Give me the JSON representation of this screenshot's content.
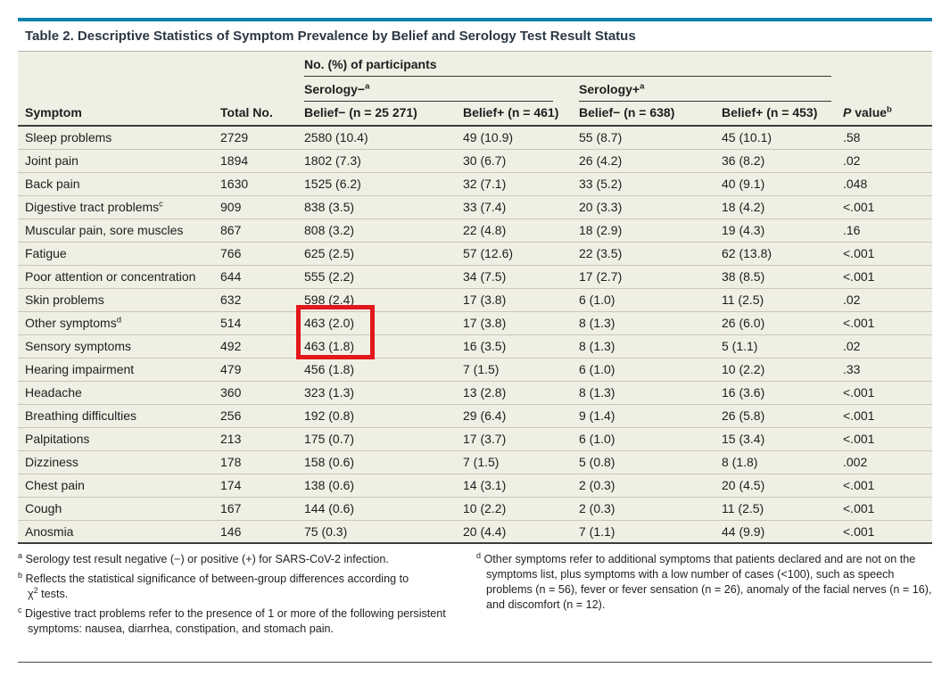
{
  "colors": {
    "accent_teal": "#0e81ad",
    "table_bg": "#f0efe4",
    "row_line": "#c8c6bb",
    "highlight_red": "#e3161c"
  },
  "table": {
    "title": "Table 2. Descriptive Statistics of Symptom Prevalence by Belief and Serology Test Result Status",
    "spanner": "No. (%) of participants",
    "groups": [
      {
        "label": "Serology−",
        "sup": "a"
      },
      {
        "label": "Serology+",
        "sup": "a"
      }
    ],
    "columns": {
      "symptom": "Symptom",
      "total": "Total No.",
      "sn_bn": "Belief− (n = 25 271)",
      "sn_bp": "Belief+ (n = 461)",
      "sp_bn": "Belief− (n = 638)",
      "sp_bp": "Belief+ (n = 453)",
      "p_italic": "P",
      "p_rest": " value",
      "p_sup": "b"
    },
    "rows": [
      {
        "symptom": "Sleep problems",
        "values": [
          "2729",
          "2580 (10.4)",
          "49 (10.9)",
          "55 (8.7)",
          "45 (10.1)",
          ".58"
        ]
      },
      {
        "symptom": "Joint pain",
        "values": [
          "1894",
          "1802 (7.3)",
          "30 (6.7)",
          "26 (4.2)",
          "36 (8.2)",
          ".02"
        ]
      },
      {
        "symptom": "Back pain",
        "values": [
          "1630",
          "1525 (6.2)",
          "32 (7.1)",
          "33 (5.2)",
          "40 (9.1)",
          ".048"
        ]
      },
      {
        "symptom": "Digestive tract problems",
        "symptom_sup": "c",
        "values": [
          "909",
          "838 (3.5)",
          "33 (7.4)",
          "20 (3.3)",
          "18 (4.2)",
          "<.001"
        ]
      },
      {
        "symptom": "Muscular pain, sore muscles",
        "values": [
          "867",
          "808 (3.2)",
          "22 (4.8)",
          "18 (2.9)",
          "19 (4.3)",
          ".16"
        ]
      },
      {
        "symptom": "Fatigue",
        "values": [
          "766",
          "625 (2.5)",
          "57 (12.6)",
          "22 (3.5)",
          "62 (13.8)",
          "<.001"
        ]
      },
      {
        "symptom": "Poor attention or concentration",
        "values": [
          "644",
          "555 (2.2)",
          "34 (7.5)",
          "17 (2.7)",
          "38 (8.5)",
          "<.001"
        ]
      },
      {
        "symptom": "Skin problems",
        "values": [
          "632",
          "598 (2.4)",
          "17 (3.8)",
          "6 (1.0)",
          "11 (2.5)",
          ".02"
        ]
      },
      {
        "symptom": "Other symptoms",
        "symptom_sup": "d",
        "values": [
          "514",
          "463 (2.0)",
          "17 (3.8)",
          "8 (1.3)",
          "26 (6.0)",
          "<.001"
        ]
      },
      {
        "symptom": "Sensory symptoms",
        "values": [
          "492",
          "463 (1.8)",
          "16 (3.5)",
          "8 (1.3)",
          "5 (1.1)",
          ".02"
        ]
      },
      {
        "symptom": "Hearing impairment",
        "values": [
          "479",
          "456 (1.8)",
          "7 (1.5)",
          "6 (1.0)",
          "10 (2.2)",
          ".33"
        ]
      },
      {
        "symptom": "Headache",
        "values": [
          "360",
          "323 (1.3)",
          "13 (2.8)",
          "8 (1.3)",
          "16 (3.6)",
          "<.001"
        ]
      },
      {
        "symptom": "Breathing difficulties",
        "values": [
          "256",
          "192 (0.8)",
          "29 (6.4)",
          "9 (1.4)",
          "26 (5.8)",
          "<.001"
        ]
      },
      {
        "symptom": "Palpitations",
        "values": [
          "213",
          "175 (0.7)",
          "17 (3.7)",
          "6 (1.0)",
          "15 (3.4)",
          "<.001"
        ]
      },
      {
        "symptom": "Dizziness",
        "values": [
          "178",
          "158 (0.6)",
          "7 (1.5)",
          "5 (0.8)",
          "8 (1.8)",
          ".002"
        ]
      },
      {
        "symptom": "Chest pain",
        "values": [
          "174",
          "138 (0.6)",
          "14 (3.1)",
          "2 (0.3)",
          "20 (4.5)",
          "<.001"
        ]
      },
      {
        "symptom": "Cough",
        "values": [
          "167",
          "144 (0.6)",
          "10 (2.2)",
          "2 (0.3)",
          "11 (2.5)",
          "<.001"
        ]
      },
      {
        "symptom": "Anosmia",
        "values": [
          "146",
          "75 (0.3)",
          "20 (4.4)",
          "7 (1.1)",
          "44 (9.9)",
          "<.001"
        ]
      }
    ]
  },
  "footnotes": {
    "a": {
      "marker": "a",
      "text": "Serology test result negative (−) or positive (+) for SARS-CoV-2 infection."
    },
    "b": {
      "marker": "b",
      "text": "Reflects the statistical significance of between-group differences according to",
      "chi": "χ",
      "sup": "2",
      "after": " tests."
    },
    "c": {
      "marker": "c",
      "text": "Digestive tract problems refer to the presence of 1 or more of the following persistent symptoms: nausea, diarrhea, constipation, and stomach pain."
    },
    "d": {
      "marker": "d",
      "text": "Other symptoms refer to additional symptoms that patients declared and are not on the symptoms list, plus symptoms with a low number of cases (<100), such as speech problems (n = 56), fever or fever sensation (n = 26), anomaly of the facial nerves (n = 16), and discomfort (n = 12)."
    }
  }
}
